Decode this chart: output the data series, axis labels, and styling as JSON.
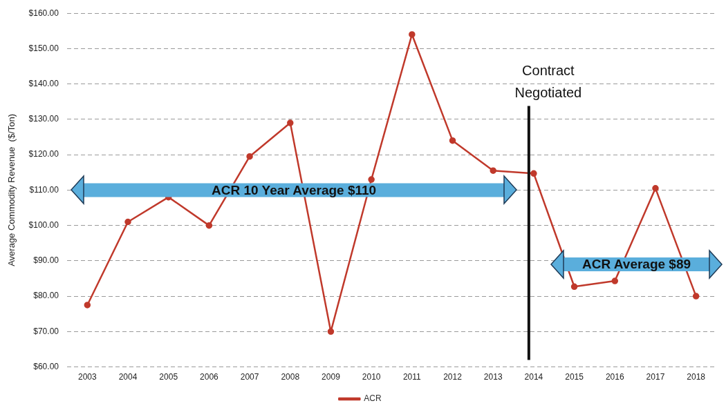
{
  "chart_data": {
    "type": "line",
    "ylabel": "Average Commodity Revenue  ($/Ton)",
    "categories": [
      "2003",
      "2004",
      "2005",
      "2006",
      "2007",
      "2008",
      "2009",
      "2010",
      "2011",
      "2012",
      "2013",
      "2014",
      "2015",
      "2016",
      "2017",
      "2018"
    ],
    "series": [
      {
        "name": "ACR",
        "color": "#c0392b",
        "values": [
          77.5,
          101,
          108,
          100,
          119.5,
          129,
          70,
          113,
          154,
          124,
          115.5,
          114.7,
          82.7,
          84.3,
          110.5,
          80
        ]
      }
    ],
    "ylim": [
      60,
      160
    ],
    "yticks": [
      {
        "value": 60,
        "label": "$60.00"
      },
      {
        "value": 70,
        "label": "$70.00"
      },
      {
        "value": 80,
        "label": "$80.00"
      },
      {
        "value": 90,
        "label": "$90.00"
      },
      {
        "value": 100,
        "label": "$100.00"
      },
      {
        "value": 110,
        "label": "$110.00"
      },
      {
        "value": 120,
        "label": "$120.00"
      },
      {
        "value": 130,
        "label": "$130.00"
      },
      {
        "value": 140,
        "label": "$140.00"
      },
      {
        "value": 150,
        "label": "$150.00"
      },
      {
        "value": 160,
        "label": "$160.00"
      }
    ],
    "ref_lines": [
      {
        "axis": "y",
        "value": 110,
        "label": "ACR 10 Year Average $110",
        "color": "#5aaedc"
      },
      {
        "axis": "x",
        "value": "2014",
        "label": "Contract Negotiated",
        "color": "#111111"
      },
      {
        "axis": "y",
        "value": 89,
        "label": "ACR Average $89",
        "color": "#5aaedc"
      }
    ],
    "grid": "y",
    "line_style": "solid",
    "marker": "circle",
    "legend": "bottom"
  }
}
